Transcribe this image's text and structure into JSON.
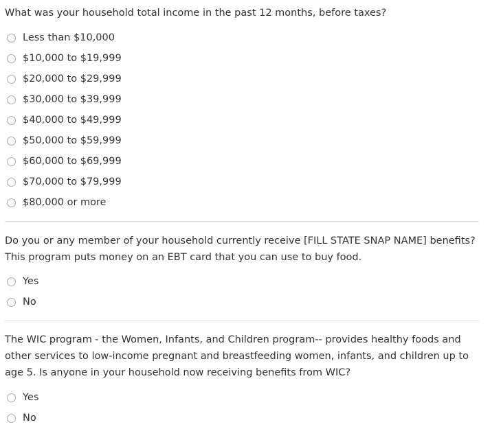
{
  "questions": [
    {
      "text": "What was your household total income in the past 12 months, before taxes?",
      "options": [
        "Less than $10,000",
        "$10,000 to $19,999",
        "$20,000 to $29,999",
        "$30,000 to $39,999",
        "$40,000 to $49,999",
        "$50,000 to $59,999",
        "$60,000 to $69,999",
        "$70,000 to $79,999",
        "$80,000 or more"
      ]
    },
    {
      "text": "Do you or any member of your household currently receive [FILL STATE SNAP NAME] benefits? This program puts money on an EBT card that you can use to buy food.",
      "options": [
        "Yes",
        "No"
      ]
    },
    {
      "text": "The WIC program - the Women, Infants, and Children program-- provides healthy foods and other services to low-income pregnant and breastfeeding women, infants, and children up to age 5. Is anyone in your household now receiving benefits from WIC?",
      "options": [
        "Yes",
        "No"
      ]
    }
  ]
}
